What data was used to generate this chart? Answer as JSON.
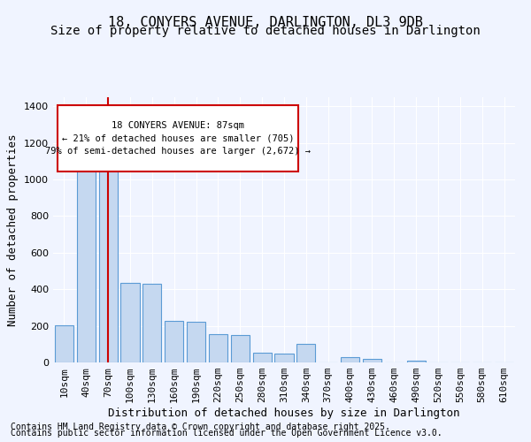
{
  "title_line1": "18, CONYERS AVENUE, DARLINGTON, DL3 9DB",
  "title_line2": "Size of property relative to detached houses in Darlington",
  "xlabel": "Distribution of detached houses by size in Darlington",
  "ylabel": "Number of detached properties",
  "categories": [
    "10sqm",
    "40sqm",
    "70sqm",
    "100sqm",
    "130sqm",
    "160sqm",
    "190sqm",
    "220sqm",
    "250sqm",
    "280sqm",
    "310sqm",
    "340sqm",
    "370sqm",
    "400sqm",
    "430sqm",
    "460sqm",
    "490sqm",
    "520sqm",
    "550sqm",
    "580sqm",
    "610sqm"
  ],
  "values": [
    205,
    1150,
    1145,
    435,
    430,
    225,
    220,
    155,
    150,
    55,
    50,
    100,
    0,
    30,
    20,
    0,
    10,
    0,
    0,
    0,
    0
  ],
  "bar_color": "#c5d8f0",
  "bar_edge_color": "#5b9bd5",
  "vline_x": 2,
  "vline_color": "#cc0000",
  "annotation_text": "18 CONYERS AVENUE: 87sqm\n← 21% of detached houses are smaller (705)\n79% of semi-detached houses are larger (2,672) →",
  "annotation_box_color": "#ffffff",
  "annotation_box_edge": "#cc0000",
  "ylim": [
    0,
    1450
  ],
  "yticks": [
    0,
    200,
    400,
    600,
    800,
    1000,
    1200,
    1400
  ],
  "background_color": "#f0f4ff",
  "plot_background": "#f0f4ff",
  "footer_line1": "Contains HM Land Registry data © Crown copyright and database right 2025.",
  "footer_line2": "Contains public sector information licensed under the Open Government Licence v3.0.",
  "grid_color": "#ffffff",
  "title_fontsize": 11,
  "subtitle_fontsize": 10,
  "xlabel_fontsize": 9,
  "ylabel_fontsize": 9,
  "tick_fontsize": 8,
  "footer_fontsize": 7
}
